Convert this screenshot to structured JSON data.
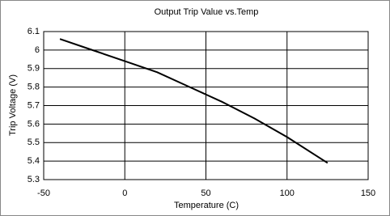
{
  "chart_data": {
    "type": "line",
    "title": "Output Trip Value vs.Temp",
    "x_label": "Temperature (C)",
    "y_label": "Trip Voltage (V)",
    "x": [
      -40,
      -20,
      0,
      20,
      40,
      60,
      80,
      100,
      125
    ],
    "series": [
      {
        "color": "#000000",
        "values": [
          6.06,
          6.0,
          5.94,
          5.88,
          5.8,
          5.72,
          5.63,
          5.53,
          5.39
        ]
      }
    ],
    "xlim": [
      -50,
      150
    ],
    "xticks": [
      -50,
      0,
      50,
      100,
      150
    ],
    "ylim": [
      5.3,
      6.1
    ],
    "yticks": [
      5.3,
      5.4,
      5.5,
      5.6,
      5.7,
      5.8,
      5.9,
      6,
      6.1
    ],
    "grid": true
  }
}
